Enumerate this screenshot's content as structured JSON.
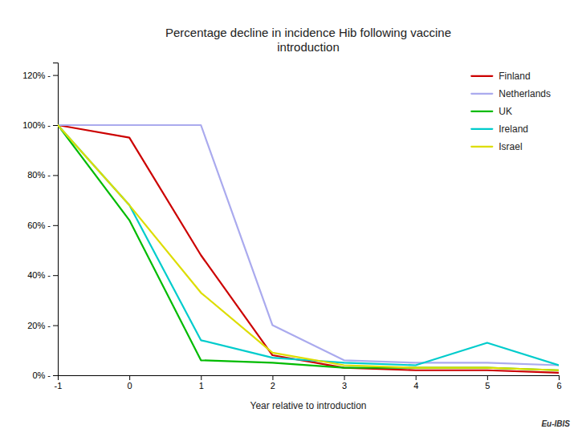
{
  "chart_data": {
    "type": "line",
    "title": "Percentage decline in incidence Hib following vaccine\nintroduction",
    "x_label": "Year relative to introduction",
    "annotations": [
      "Eu-IBIS"
    ],
    "x": [
      -1,
      0,
      1,
      2,
      3,
      4,
      5,
      6
    ],
    "xlim": [
      -1,
      6
    ],
    "xticks": [
      -1,
      0,
      1,
      2,
      3,
      4,
      5,
      6
    ],
    "ylim": [
      0,
      1.25
    ],
    "yticks": [
      {
        "value": 0.0,
        "label": "0% -"
      },
      {
        "value": 0.2,
        "label": "20% -"
      },
      {
        "value": 0.4,
        "label": "40% -"
      },
      {
        "value": 0.6,
        "label": "60% -"
      },
      {
        "value": 0.8,
        "label": "80% -"
      },
      {
        "value": 1.0,
        "label": "100% -"
      },
      {
        "value": 1.2,
        "label": "120% -"
      }
    ],
    "grid": false,
    "legend": "upper right",
    "series": [
      {
        "name": "Finland",
        "color": "#CC0000",
        "values": [
          1.0,
          0.95,
          0.48,
          0.08,
          0.03,
          0.02,
          0.02,
          0.01
        ]
      },
      {
        "name": "Netherlands",
        "color": "#AAAAEE",
        "values": [
          1.0,
          1.0,
          1.0,
          0.2,
          0.06,
          0.05,
          0.05,
          0.04
        ]
      },
      {
        "name": "UK",
        "color": "#00BB00",
        "values": [
          1.0,
          0.62,
          0.06,
          0.05,
          0.03,
          0.03,
          0.03,
          0.02
        ]
      },
      {
        "name": "Ireland",
        "color": "#00CCCC",
        "values": [
          1.0,
          0.68,
          0.14,
          0.07,
          0.05,
          0.04,
          0.13,
          0.04
        ]
      },
      {
        "name": "Israel",
        "color": "#DDDD00",
        "values": [
          1.0,
          0.68,
          0.33,
          0.09,
          0.04,
          0.03,
          0.03,
          0.02
        ]
      }
    ]
  }
}
